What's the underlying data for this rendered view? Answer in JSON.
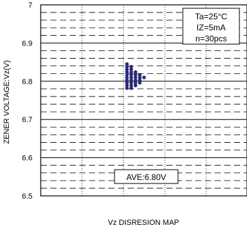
{
  "chart_data": {
    "type": "scatter",
    "title": "",
    "xlabel": "Vz DISRESION MAP",
    "ylabel": "ZENER VOLTAGE:Vz(V)",
    "ylim": [
      6.5,
      7.0
    ],
    "y_ticks": [
      "6.5",
      "6.6",
      "6.7",
      "6.8",
      "6.9",
      "7"
    ],
    "grid": true,
    "conditions": [
      "Ta=25°C",
      "IZ=5mA",
      "n=30pcs"
    ],
    "average_label": "AVE:6.80V",
    "colors": {
      "points": "#2a2a7a",
      "frame": "#000000",
      "grid": "#000000"
    },
    "series": [
      {
        "values": [
          {
            "x": 1,
            "y": 6.845
          },
          {
            "x": 1,
            "y": 6.838
          },
          {
            "x": 1,
            "y": 6.831
          },
          {
            "x": 1,
            "y": 6.824
          },
          {
            "x": 1,
            "y": 6.817
          },
          {
            "x": 1,
            "y": 6.81
          },
          {
            "x": 1,
            "y": 6.803
          },
          {
            "x": 1,
            "y": 6.796
          },
          {
            "x": 1,
            "y": 6.789
          },
          {
            "x": 1,
            "y": 6.782
          },
          {
            "x": 2,
            "y": 6.838
          },
          {
            "x": 2,
            "y": 6.831
          },
          {
            "x": 2,
            "y": 6.824
          },
          {
            "x": 2,
            "y": 6.817
          },
          {
            "x": 2,
            "y": 6.81
          },
          {
            "x": 2,
            "y": 6.803
          },
          {
            "x": 2,
            "y": 6.796
          },
          {
            "x": 2,
            "y": 6.789
          },
          {
            "x": 2,
            "y": 6.782
          },
          {
            "x": 3,
            "y": 6.824
          },
          {
            "x": 3,
            "y": 6.817
          },
          {
            "x": 3,
            "y": 6.81
          },
          {
            "x": 3,
            "y": 6.803
          },
          {
            "x": 3,
            "y": 6.796
          },
          {
            "x": 3,
            "y": 6.789
          },
          {
            "x": 4,
            "y": 6.817
          },
          {
            "x": 4,
            "y": 6.81
          },
          {
            "x": 4,
            "y": 6.803
          },
          {
            "x": 4,
            "y": 6.796
          },
          {
            "x": 5,
            "y": 6.81
          }
        ]
      }
    ]
  }
}
